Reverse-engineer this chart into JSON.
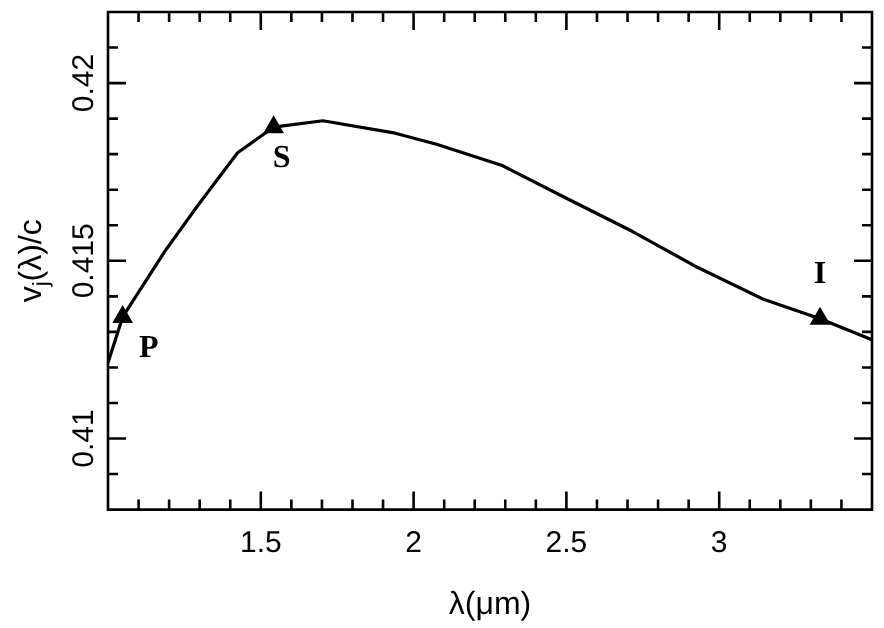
{
  "chart_data": {
    "type": "line",
    "xlabel": "λ(μm)",
    "ylabel": "v$_{j}$(λ)/c",
    "xlim": [
      1,
      3.5
    ],
    "ylim": [
      0.408,
      0.422
    ],
    "xticks": [
      {
        "value": 1.1,
        "label": null
      },
      {
        "value": 1.2,
        "label": null
      },
      {
        "value": 1.3,
        "label": null
      },
      {
        "value": 1.4,
        "label": null
      },
      1.5,
      {
        "value": 1.6,
        "label": null
      },
      {
        "value": 1.7,
        "label": null
      },
      {
        "value": 1.8,
        "label": null
      },
      {
        "value": 1.9,
        "label": null
      },
      2,
      {
        "value": 2.1,
        "label": null
      },
      {
        "value": 2.2,
        "label": null
      },
      {
        "value": 2.3,
        "label": null
      },
      {
        "value": 2.4,
        "label": null
      },
      2.5,
      {
        "value": 2.6,
        "label": null
      },
      {
        "value": 2.7,
        "label": null
      },
      {
        "value": 2.8,
        "label": null
      },
      {
        "value": 2.9,
        "label": null
      },
      3,
      {
        "value": 3.1,
        "label": null
      },
      {
        "value": 3.2,
        "label": null
      },
      {
        "value": 3.3,
        "label": null
      },
      {
        "value": 3.4,
        "label": null
      }
    ],
    "yticks": [
      {
        "value": 0.409,
        "label": null
      },
      0.41,
      {
        "value": 0.411,
        "label": null
      },
      {
        "value": 0.412,
        "label": null
      },
      {
        "value": 0.413,
        "label": null
      },
      {
        "value": 0.414,
        "label": null
      },
      0.415,
      {
        "value": 0.416,
        "label": null
      },
      {
        "value": 0.417,
        "label": null
      },
      {
        "value": 0.418,
        "label": null
      },
      {
        "value": 0.419,
        "label": null
      },
      0.42,
      {
        "value": 0.421,
        "label": null
      }
    ],
    "grid": false,
    "legend": false,
    "series": [
      {
        "type": "line",
        "color": "#000000",
        "marker": "none",
        "x": [
          1.0,
          1.048,
          1.187,
          1.295,
          1.424,
          1.542,
          1.703,
          1.94,
          2.075,
          2.29,
          2.5,
          2.715,
          2.93,
          3.145,
          3.33,
          3.5
        ],
        "values": [
          0.41213,
          0.41342,
          0.41528,
          0.41657,
          0.41804,
          0.41876,
          0.41894,
          0.41859,
          0.41828,
          0.41768,
          0.41676,
          0.41583,
          0.41481,
          0.41392,
          0.41337,
          0.41278
        ]
      },
      {
        "type": "scatter",
        "color": "#000000",
        "marker": "triangle",
        "x": [
          1.048,
          1.542,
          3.33
        ],
        "values": [
          0.41342,
          0.41876,
          0.41337
        ]
      }
    ],
    "annotations": [
      "P",
      "S",
      "I"
    ]
  }
}
